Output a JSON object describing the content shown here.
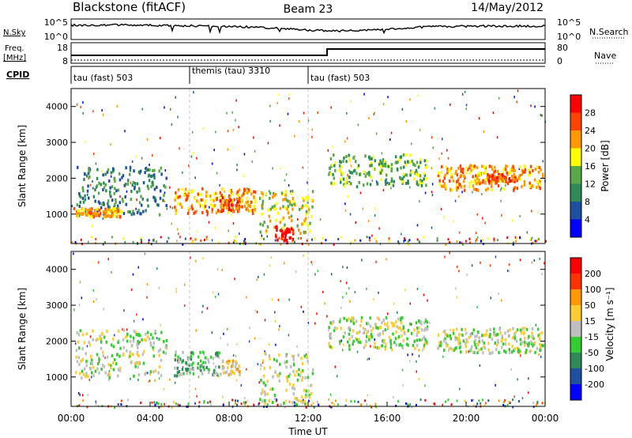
{
  "header": {
    "station": "Blackstone (fitACF)",
    "beam": "Beam 23",
    "date": "14/May/2012"
  },
  "noise_panel": {
    "left_label": "N.Sky",
    "right_label": "N.Search",
    "ticks": [
      "10^5",
      "10^0"
    ]
  },
  "freq_panel": {
    "left_label_line1": "Freq.",
    "left_label_line2": "[MHz]",
    "left_ticks": [
      "18",
      "8"
    ],
    "right_label": "Nave",
    "right_ticks": [
      "80",
      "0"
    ]
  },
  "cpid_panel": {
    "label": "CPID",
    "segments": [
      {
        "name": "tau (fast) 503",
        "start_hour": 0
      },
      {
        "name": "themis (tau) 3310",
        "start_hour": 6
      },
      {
        "name": "tau (fast) 503",
        "start_hour": 12
      }
    ]
  },
  "colors": {
    "power_scale": [
      "#0000ff",
      "#1f4fa0",
      "#2e8b57",
      "#5aa84a",
      "#ffff00",
      "#ff9900",
      "#ff4400",
      "#ff0000"
    ],
    "velocity_scale": [
      "#0000ff",
      "#1f4fa0",
      "#2e8b57",
      "#33cc33",
      "#bfbfbf",
      "#ffcc33",
      "#ff9900",
      "#ff3300",
      "#ff0000"
    ]
  },
  "chart_data": [
    {
      "type": "heatmap",
      "name": "Power",
      "ylabel": "Slant Range [km]",
      "colorbar_label": "Power [dB]",
      "colorbar_ticks": [
        "28",
        "24",
        "20",
        "16",
        "12",
        "8",
        "4"
      ],
      "yticks": [
        "4000",
        "3000",
        "2000",
        "1000"
      ],
      "ylim": [
        180,
        4500
      ],
      "xlim": [
        0,
        24
      ],
      "bands": [
        {
          "t0": 0.2,
          "t1": 4.8,
          "r0": 1000,
          "r1": 2350,
          "level": 2
        },
        {
          "t0": 0.1,
          "t1": 2.5,
          "r0": 950,
          "r1": 1200,
          "level": 5
        },
        {
          "t0": 5.2,
          "t1": 9.3,
          "r0": 1050,
          "r1": 1750,
          "level": 5
        },
        {
          "t0": 7.5,
          "t1": 8.5,
          "r0": 1100,
          "r1": 1500,
          "level": 6
        },
        {
          "t0": 9.5,
          "t1": 12.2,
          "r0": 500,
          "r1": 1700,
          "level": 4
        },
        {
          "t0": 10.3,
          "t1": 11.2,
          "r0": 230,
          "r1": 700,
          "level": 7
        },
        {
          "t0": 13.0,
          "t1": 18.0,
          "r0": 1800,
          "r1": 2700,
          "level": 3
        },
        {
          "t0": 18.5,
          "t1": 23.9,
          "r0": 1700,
          "r1": 2400,
          "level": 5
        },
        {
          "t0": 21.0,
          "t1": 22.5,
          "r0": 1950,
          "r1": 2150,
          "level": 6
        }
      ]
    },
    {
      "type": "heatmap",
      "name": "Velocity",
      "ylabel": "Slant Range [km]",
      "colorbar_label": "Velocity [m s⁻¹]",
      "colorbar_ticks": [
        "200",
        "100",
        "50",
        "15",
        "-15",
        "-50",
        "-100",
        "-200"
      ],
      "yticks": [
        "4000",
        "3000",
        "2000",
        "1000"
      ],
      "xticks": [
        "00:00",
        "04:00",
        "08:00",
        "12:00",
        "16:00",
        "20:00",
        "00:00"
      ],
      "xlabel": "Time UT",
      "ylim": [
        180,
        4500
      ],
      "xlim": [
        0,
        24
      ],
      "bands": [
        {
          "t0": 0.2,
          "t1": 4.8,
          "r0": 1000,
          "r1": 2350,
          "level": 4
        },
        {
          "t0": 5.2,
          "t1": 7.5,
          "r0": 1050,
          "r1": 1750,
          "level": 3
        },
        {
          "t0": 7.5,
          "t1": 8.5,
          "r0": 1100,
          "r1": 1500,
          "level": 5
        },
        {
          "t0": 9.5,
          "t1": 12.2,
          "r0": 230,
          "r1": 1700,
          "level": 4
        },
        {
          "t0": 13.0,
          "t1": 18.0,
          "r0": 1800,
          "r1": 2700,
          "level": 4
        },
        {
          "t0": 18.5,
          "t1": 23.9,
          "r0": 1700,
          "r1": 2400,
          "level": 4
        }
      ]
    }
  ]
}
